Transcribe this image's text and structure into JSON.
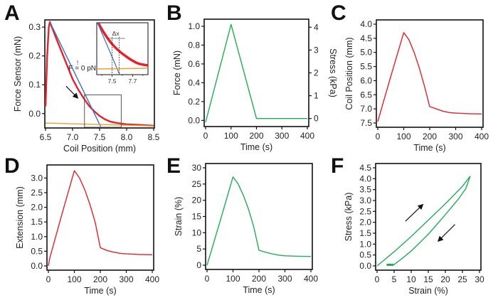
{
  "colors": {
    "red": "#e8202a",
    "green": "#1fae55",
    "blue": "#3a6fc4",
    "orange": "#f0a030",
    "axis": "#111111",
    "inset_box": "#555555"
  },
  "chart_data": [
    {
      "id": "A",
      "letter": "A",
      "type": "line",
      "xlabel": "Coil Position (mm)",
      "ylabel": "Force Sensor (mN)",
      "xlim": [
        6.5,
        8.5
      ],
      "ylim": [
        -0.045,
        0.32
      ],
      "xticks": [
        6.5,
        7.0,
        7.5,
        8.0,
        8.5
      ],
      "xtick_labels": [
        "6.5",
        "7.0",
        "7.5",
        "8.0",
        "8.5"
      ],
      "yticks": [
        0.0,
        0.1,
        0.2,
        0.3
      ],
      "ytick_labels": [
        "0.0",
        "0.1",
        "0.2",
        "0.3"
      ],
      "series": [
        {
          "name": "force-curve",
          "color": "red",
          "x": [
            6.5,
            6.53,
            6.56,
            6.58,
            6.7,
            6.85,
            7.0,
            7.1,
            7.2,
            7.3,
            7.4,
            7.5,
            7.6,
            7.7,
            7.8,
            7.9,
            8.0,
            8.2,
            8.4,
            8.5
          ],
          "y": [
            0.025,
            0.2,
            0.3,
            0.318,
            0.26,
            0.19,
            0.12,
            0.085,
            0.055,
            0.028,
            0.008,
            -0.008,
            -0.02,
            -0.028,
            -0.032,
            -0.035,
            -0.037,
            -0.039,
            -0.041,
            -0.042
          ]
        },
        {
          "name": "linear-fit",
          "color": "blue",
          "x": [
            6.58,
            7.52
          ],
          "y": [
            0.318,
            -0.045
          ]
        },
        {
          "name": "baseline-fit",
          "color": "orange",
          "x": [
            6.5,
            8.5
          ],
          "y": [
            -0.033,
            -0.043
          ]
        }
      ],
      "annotations": [
        {
          "type": "arrow",
          "name": "direction-arrow",
          "from": [
            6.88,
            0.095
          ],
          "to": [
            7.09,
            0.055
          ]
        },
        {
          "type": "rect",
          "name": "zoom-region",
          "x": [
            7.22,
            7.9
          ],
          "y": [
            -0.045,
            0.065
          ]
        }
      ],
      "inset": {
        "xlim": [
          7.35,
          7.85
        ],
        "xticks": [
          7.5,
          7.7
        ],
        "xtick_labels": [
          "7.5",
          "7.7"
        ],
        "minor_xticks": [
          7.4,
          7.6,
          7.8
        ],
        "label": "F = 0 pN",
        "label_top": "!",
        "delta_label": "Δx",
        "delta_x": [
          7.5,
          7.57
        ]
      }
    },
    {
      "id": "B",
      "letter": "B",
      "type": "line",
      "xlabel": "Time (s)",
      "ylabel": "Force (mN)",
      "ylabel_right": "Stress (kPa)",
      "xlim": [
        0,
        400
      ],
      "ylim": [
        -0.02,
        1.03
      ],
      "xticks": [
        0,
        100,
        200,
        300,
        400
      ],
      "xtick_labels": [
        "0",
        "100",
        "200",
        "300",
        "400"
      ],
      "yticks": [
        0.0,
        0.2,
        0.4,
        0.6,
        0.8,
        1.0
      ],
      "ytick_labels": [
        "0.0",
        "0.2",
        "0.4",
        "0.6",
        "0.8",
        "1.0"
      ],
      "yticks_right": [
        0,
        1,
        2,
        3,
        4
      ],
      "yticks_right_labels": [
        "0",
        "1",
        "2",
        "3",
        "4"
      ],
      "right_axis_map": {
        "value0_at_left": 0.02,
        "value4_at_left": 0.99
      },
      "series": [
        {
          "name": "force",
          "color": "green",
          "x": [
            0,
            100,
            200,
            400
          ],
          "y": [
            -0.02,
            1.02,
            0.02,
            0.02
          ]
        }
      ]
    },
    {
      "id": "C",
      "letter": "C",
      "type": "line",
      "xlabel": "Time (s)",
      "ylabel": "Coil Position (mm)",
      "inverted_y": true,
      "xlim": [
        0,
        400
      ],
      "ylim": [
        4.0,
        7.5
      ],
      "xticks": [
        0,
        100,
        200,
        300,
        400
      ],
      "xtick_labels": [
        "0",
        "100",
        "200",
        "300",
        "400"
      ],
      "yticks": [
        4.0,
        4.5,
        5.0,
        5.5,
        6.0,
        6.5,
        7.0,
        7.5
      ],
      "ytick_labels": [
        "4.0",
        "4.5",
        "5.0",
        "5.5",
        "6.0",
        "6.5",
        "7.0",
        "7.5"
      ],
      "series": [
        {
          "name": "coil-position",
          "color": "red",
          "x": [
            0,
            50,
            100,
            120,
            140,
            160,
            180,
            200,
            225,
            250,
            275,
            300,
            350,
            400
          ],
          "y": [
            7.45,
            5.85,
            4.3,
            4.55,
            5.0,
            5.55,
            6.2,
            6.92,
            7.0,
            7.08,
            7.13,
            7.15,
            7.17,
            7.18
          ]
        }
      ]
    },
    {
      "id": "D",
      "letter": "D",
      "type": "line",
      "xlabel": "Time (s)",
      "ylabel": "Extension (mm)",
      "xlim": [
        0,
        400
      ],
      "ylim": [
        0,
        3.3
      ],
      "xticks": [
        0,
        100,
        200,
        300,
        400
      ],
      "xtick_labels": [
        "0",
        "100",
        "200",
        "300",
        "400"
      ],
      "yticks": [
        0.0,
        0.5,
        1.0,
        1.5,
        2.0,
        2.5,
        3.0
      ],
      "ytick_labels": [
        "0.0",
        "0.5",
        "1.0",
        "1.5",
        "2.0",
        "2.5",
        "3.0"
      ],
      "series": [
        {
          "name": "extension",
          "color": "red",
          "x": [
            0,
            5,
            50,
            100,
            120,
            140,
            160,
            180,
            200,
            225,
            250,
            275,
            300,
            350,
            400
          ],
          "y": [
            0,
            0.25,
            1.7,
            3.25,
            3.0,
            2.6,
            2.1,
            1.5,
            0.62,
            0.53,
            0.47,
            0.43,
            0.41,
            0.39,
            0.38
          ]
        }
      ]
    },
    {
      "id": "E",
      "letter": "E",
      "type": "line",
      "xlabel": "Time (s)",
      "ylabel": "Strain (%)",
      "xlim": [
        0,
        400
      ],
      "ylim": [
        0,
        30
      ],
      "xticks": [
        0,
        100,
        200,
        300,
        400
      ],
      "xtick_labels": [
        "0",
        "100",
        "200",
        "300",
        "400"
      ],
      "yticks": [
        0,
        5,
        10,
        15,
        20,
        25,
        30
      ],
      "ytick_labels": [
        "0",
        "5",
        "10",
        "15",
        "20",
        "25",
        "30"
      ],
      "series": [
        {
          "name": "strain",
          "color": "green",
          "x": [
            0,
            50,
            100,
            120,
            140,
            160,
            180,
            200,
            225,
            250,
            275,
            300,
            350,
            400
          ],
          "y": [
            0,
            13.5,
            27.2,
            25.0,
            21.5,
            17.2,
            11.8,
            4.6,
            4.0,
            3.5,
            3.1,
            2.9,
            2.75,
            2.7
          ]
        }
      ]
    },
    {
      "id": "F",
      "letter": "F",
      "type": "line",
      "xlabel": "Strain (%)",
      "ylabel": "Stress (kPa)",
      "xlim": [
        0,
        30
      ],
      "ylim": [
        0,
        4.5
      ],
      "xticks": [
        0,
        5,
        10,
        15,
        20,
        25,
        30
      ],
      "xtick_labels": [
        "0",
        "5",
        "10",
        "15",
        "20",
        "25",
        "30"
      ],
      "yticks": [
        0.0,
        0.5,
        1.0,
        1.5,
        2.0,
        2.5,
        3.0,
        3.5,
        4.0,
        4.5
      ],
      "ytick_labels": [
        "0.0",
        "0.5",
        "1.0",
        "1.5",
        "2.0",
        "2.5",
        "3.0",
        "3.5",
        "4.0",
        "4.5"
      ],
      "series": [
        {
          "name": "loading",
          "color": "green",
          "x": [
            0,
            5,
            10,
            15,
            20,
            25,
            27.3
          ],
          "y": [
            0,
            0.65,
            1.35,
            2.1,
            2.85,
            3.65,
            4.12
          ]
        },
        {
          "name": "unloading",
          "color": "green",
          "x": [
            27.3,
            26,
            24,
            20,
            15,
            10,
            7,
            5,
            3
          ],
          "y": [
            4.12,
            3.55,
            3.1,
            2.35,
            1.45,
            0.68,
            0.3,
            0.06,
            0.06
          ]
        }
      ],
      "annotations": [
        {
          "type": "arrow",
          "name": "loading-arrow",
          "from": [
            8.3,
            2.05
          ],
          "to": [
            13.3,
            2.8
          ]
        },
        {
          "type": "arrow",
          "name": "unloading-arrow",
          "from": [
            22.8,
            1.9
          ],
          "to": [
            18,
            1.15
          ]
        }
      ]
    }
  ]
}
